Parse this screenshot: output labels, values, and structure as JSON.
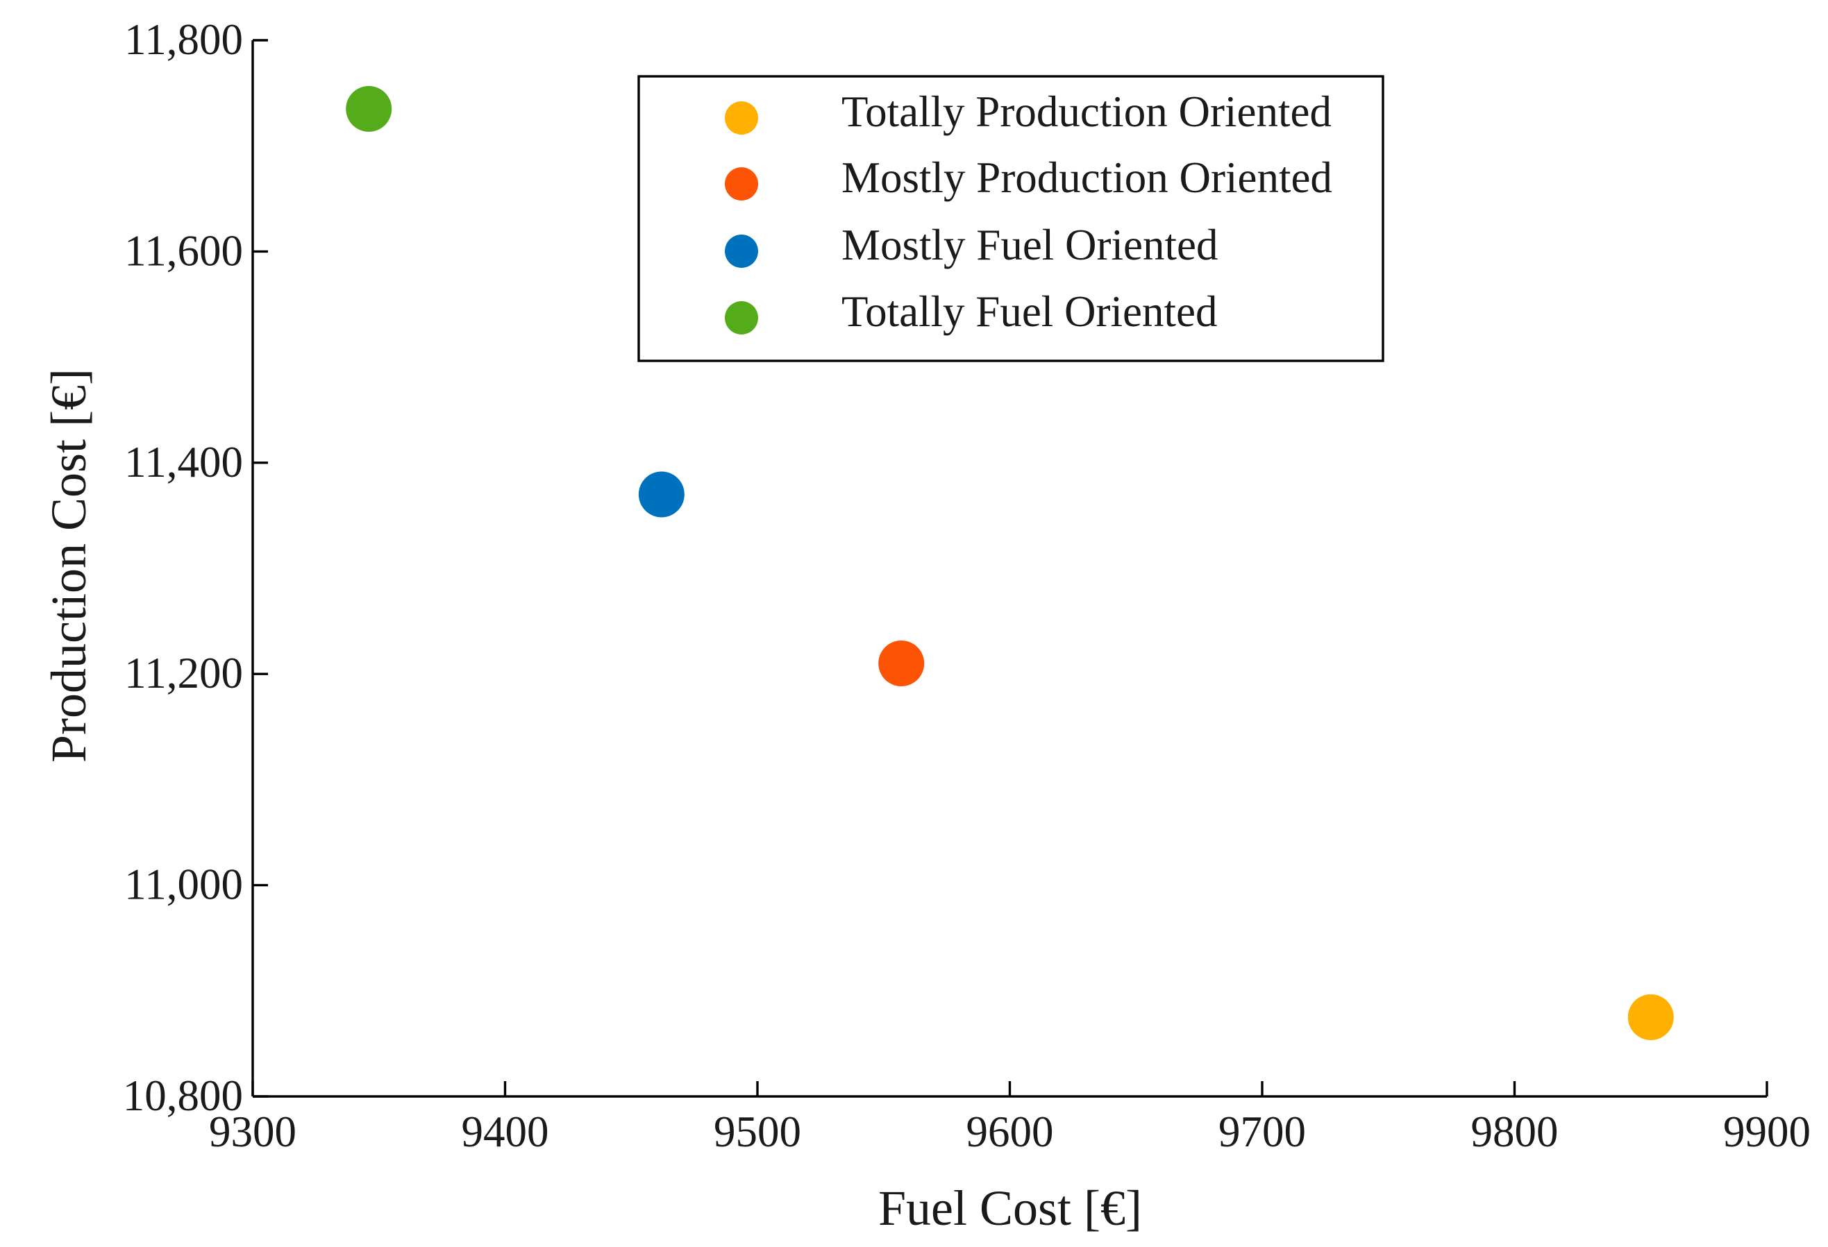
{
  "chart_data": {
    "type": "scatter",
    "title": "",
    "xlabel": "Fuel Cost [€]",
    "ylabel": "Production Cost [€]",
    "xlim": [
      9300,
      9900
    ],
    "ylim": [
      10800,
      11800
    ],
    "x_ticks": [
      9300,
      9400,
      9500,
      9600,
      9700,
      9800,
      9900
    ],
    "x_tick_labels": [
      "9300",
      "9400",
      "9500",
      "9600",
      "9700",
      "9800",
      "9900"
    ],
    "y_ticks": [
      10800,
      11000,
      11200,
      11400,
      11600,
      11800
    ],
    "y_tick_labels": [
      "10,800",
      "11,000",
      "11,200",
      "11,400",
      "11,600",
      "11,800"
    ],
    "grid": false,
    "legend_position": "top-center",
    "series": [
      {
        "name": "Totally Production Oriented",
        "color": "#FFB000",
        "x": [
          9854
        ],
        "y": [
          10875
        ]
      },
      {
        "name": "Mostly Production Oriented",
        "color": "#FC5305",
        "x": [
          9557
        ],
        "y": [
          11210
        ]
      },
      {
        "name": "Mostly Fuel Oriented",
        "color": "#0072BD",
        "x": [
          9462
        ],
        "y": [
          11370
        ]
      },
      {
        "name": "Totally Fuel Oriented",
        "color": "#55AC1A",
        "x": [
          9346
        ],
        "y": [
          11735
        ]
      }
    ]
  }
}
